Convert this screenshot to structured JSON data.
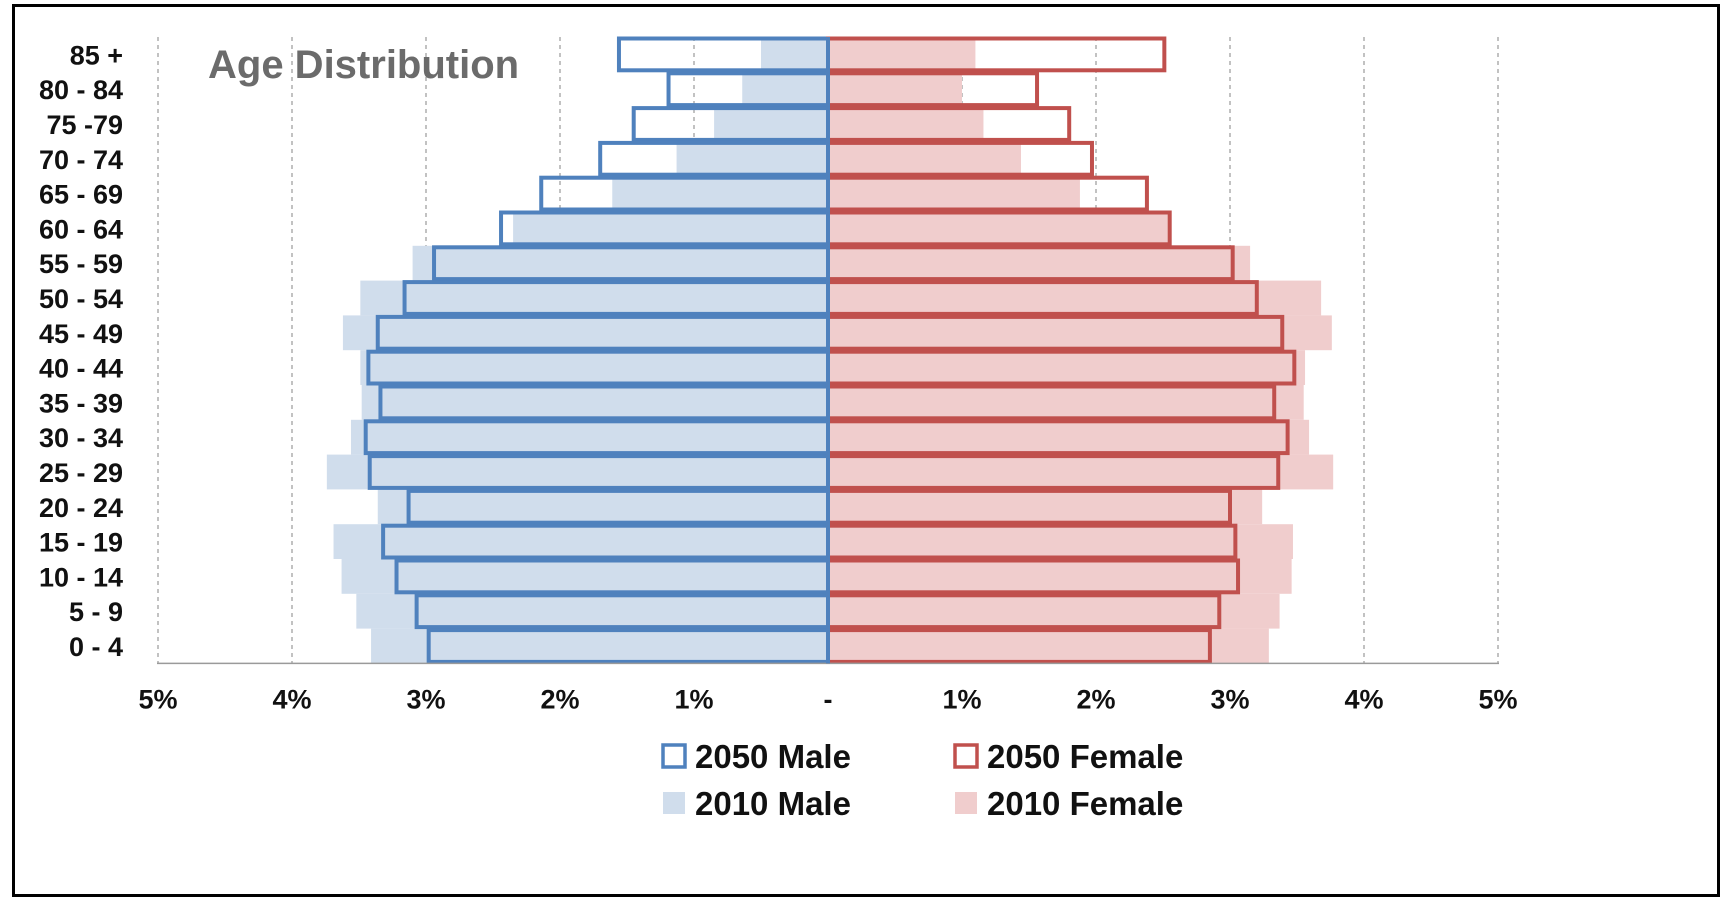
{
  "chart_data": {
    "type": "bar",
    "title": "Age Distribution",
    "orientation": "horizontal",
    "layout": "population-pyramid",
    "categories": [
      "85 +",
      "80 - 84",
      "75 -79",
      "70 - 74",
      "65 - 69",
      "60 - 64",
      "55 - 59",
      "50 - 54",
      "45 - 49",
      "40 - 44",
      "35 - 39",
      "30 - 34",
      "25 - 29",
      "20 - 24",
      "15 - 19",
      "10 - 14",
      "5 - 9",
      "0 - 4"
    ],
    "x_tick_labels": [
      "5%",
      "4%",
      "3%",
      "2%",
      "1%",
      "-",
      "1%",
      "2%",
      "3%",
      "4%",
      "5%"
    ],
    "x_ticks": [
      -5,
      -4,
      -3,
      -2,
      -1,
      0,
      1,
      2,
      3,
      4,
      5
    ],
    "xlim": [
      -5,
      5
    ],
    "grid": true,
    "legend_position": "bottom",
    "series": [
      {
        "name": "2050 Male",
        "style": "outline",
        "color": "#4f81bd",
        "side": "left",
        "values": [
          1.56,
          1.19,
          1.45,
          1.7,
          2.14,
          2.44,
          2.94,
          3.16,
          3.36,
          3.43,
          3.34,
          3.45,
          3.42,
          3.13,
          3.32,
          3.22,
          3.07,
          2.98
        ]
      },
      {
        "name": "2050 Female",
        "style": "outline",
        "color": "#c0504d",
        "side": "right",
        "values": [
          2.51,
          1.56,
          1.8,
          1.97,
          2.38,
          2.55,
          3.02,
          3.2,
          3.39,
          3.48,
          3.33,
          3.43,
          3.36,
          3.0,
          3.04,
          3.06,
          2.92,
          2.85
        ]
      },
      {
        "name": "2010 Male",
        "style": "fill",
        "color": "#d0ddec",
        "side": "left",
        "values": [
          0.5,
          0.64,
          0.85,
          1.13,
          1.61,
          2.35,
          3.1,
          3.49,
          3.62,
          3.49,
          3.48,
          3.56,
          3.74,
          3.36,
          3.69,
          3.63,
          3.52,
          3.41
        ]
      },
      {
        "name": "2010 Female",
        "style": "fill",
        "color": "#f0cdcd",
        "side": "right",
        "values": [
          1.1,
          1.0,
          1.16,
          1.44,
          1.88,
          2.56,
          3.15,
          3.68,
          3.76,
          3.56,
          3.55,
          3.59,
          3.77,
          3.24,
          3.47,
          3.46,
          3.37,
          3.29
        ]
      }
    ]
  }
}
